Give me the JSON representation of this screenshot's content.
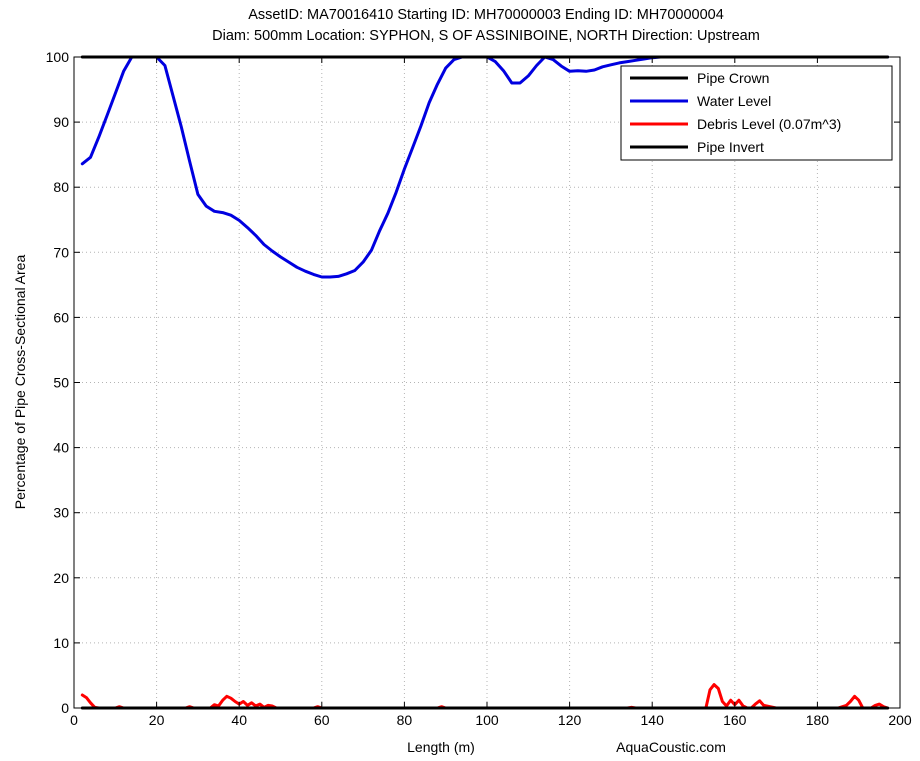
{
  "chart_data": {
    "type": "line",
    "title_lines": [
      "AssetID: MA70016410  Starting ID: MH70000003  Ending ID: MH70000004",
      "Diam: 500mm  Location: SYPHON, S OF ASSINIBOINE, NORTH  Direction: Upstream"
    ],
    "xlabel": "Length (m)",
    "ylabel": "Percentage of Pipe Cross-Sectional Area",
    "credit": "AquaCoustic.com",
    "xlim": [
      0,
      200
    ],
    "ylim": [
      0,
      100
    ],
    "xticks": [
      0,
      20,
      40,
      60,
      80,
      100,
      120,
      140,
      160,
      180,
      200
    ],
    "yticks": [
      0,
      10,
      20,
      30,
      40,
      50,
      60,
      70,
      80,
      90,
      100
    ],
    "xtick_labels": [
      "0",
      "20",
      "40",
      "60",
      "80",
      "100",
      "120",
      "140",
      "160",
      "180",
      "200"
    ],
    "ytick_labels": [
      "0",
      "10",
      "20",
      "30",
      "40",
      "50",
      "60",
      "70",
      "80",
      "90",
      "100"
    ],
    "grid": true,
    "legend_position": "top-right",
    "series": [
      {
        "name": "Pipe Crown",
        "color": "#000000",
        "x": [
          2,
          197
        ],
        "y": [
          100,
          100
        ]
      },
      {
        "name": "Water Level",
        "color": "#0000e0",
        "x": [
          2,
          4,
          6,
          8,
          10,
          12,
          14,
          16,
          18,
          20,
          22,
          24,
          26,
          28,
          30,
          32,
          34,
          36,
          38,
          40,
          42,
          44,
          46,
          48,
          50,
          52,
          54,
          56,
          58,
          60,
          62,
          64,
          66,
          68,
          70,
          72,
          74,
          76,
          78,
          80,
          82,
          84,
          86,
          88,
          90,
          92,
          94,
          96,
          98,
          100,
          102,
          104,
          106,
          108,
          110,
          112,
          114,
          116,
          118,
          120,
          122,
          124,
          126,
          128,
          130,
          132,
          134,
          136,
          138,
          140,
          142,
          144,
          146,
          148,
          150,
          151,
          152,
          154,
          160,
          170,
          180,
          190,
          197
        ],
        "y": [
          83.6,
          84.6,
          87.7,
          91.0,
          94.4,
          97.8,
          100,
          100,
          100,
          100,
          98.7,
          94.0,
          89.2,
          84.0,
          78.9,
          77.1,
          76.3,
          76.1,
          75.7,
          74.9,
          73.8,
          72.6,
          71.2,
          70.2,
          69.3,
          68.5,
          67.7,
          67.1,
          66.6,
          66.2,
          66.2,
          66.3,
          66.7,
          67.2,
          68.5,
          70.3,
          73.3,
          76.0,
          79.2,
          82.8,
          86.1,
          89.4,
          93.0,
          95.8,
          98.3,
          99.6,
          100,
          100,
          100,
          100,
          99.3,
          97.9,
          96.0,
          96.0,
          97.1,
          98.7,
          100,
          99.6,
          98.6,
          97.8,
          97.9,
          97.8,
          98.0,
          98.5,
          98.8,
          99.1,
          99.3,
          99.5,
          99.7,
          99.9,
          100,
          100,
          100,
          100,
          100,
          100,
          100,
          100,
          100,
          100,
          100,
          100,
          100
        ]
      },
      {
        "name": "Debris Level (0.07m^3)",
        "color": "#ff0000",
        "x": [
          2,
          3,
          4,
          5,
          6,
          8,
          10,
          11,
          12,
          14,
          20,
          27,
          28,
          29,
          33,
          34,
          35,
          36,
          37,
          38,
          39,
          40,
          41,
          42,
          43,
          44,
          45,
          46,
          47,
          48,
          49,
          50,
          55,
          58,
          59,
          60,
          70,
          88,
          89,
          90,
          100,
          134,
          135,
          136,
          150,
          153,
          154,
          155,
          156,
          157,
          158,
          159,
          160,
          161,
          162,
          163,
          164,
          165,
          166,
          167,
          170,
          180,
          185,
          187,
          188,
          189,
          190,
          191,
          193,
          194,
          195,
          196,
          197
        ],
        "y": [
          2.0,
          1.6,
          0.8,
          0.1,
          0,
          0,
          0,
          0.2,
          0,
          0,
          0,
          0,
          0.2,
          0,
          0,
          0.5,
          0.3,
          1.2,
          1.8,
          1.5,
          1.0,
          0.6,
          1.0,
          0.4,
          0.8,
          0.3,
          0.6,
          0.1,
          0.4,
          0.3,
          0,
          0,
          0,
          0,
          0.2,
          0,
          0,
          0,
          0.2,
          0,
          0,
          0,
          0.1,
          0,
          0,
          0,
          2.8,
          3.6,
          3.0,
          1.0,
          0.3,
          1.2,
          0.5,
          1.2,
          0.3,
          0,
          0,
          0.6,
          1.1,
          0.4,
          0,
          0,
          0,
          0.4,
          1.0,
          1.8,
          1.2,
          0,
          0,
          0.4,
          0.6,
          0.2,
          0
        ]
      },
      {
        "name": "Pipe Invert",
        "color": "#000000",
        "x": [
          2,
          197
        ],
        "y": [
          0,
          0
        ]
      }
    ]
  }
}
